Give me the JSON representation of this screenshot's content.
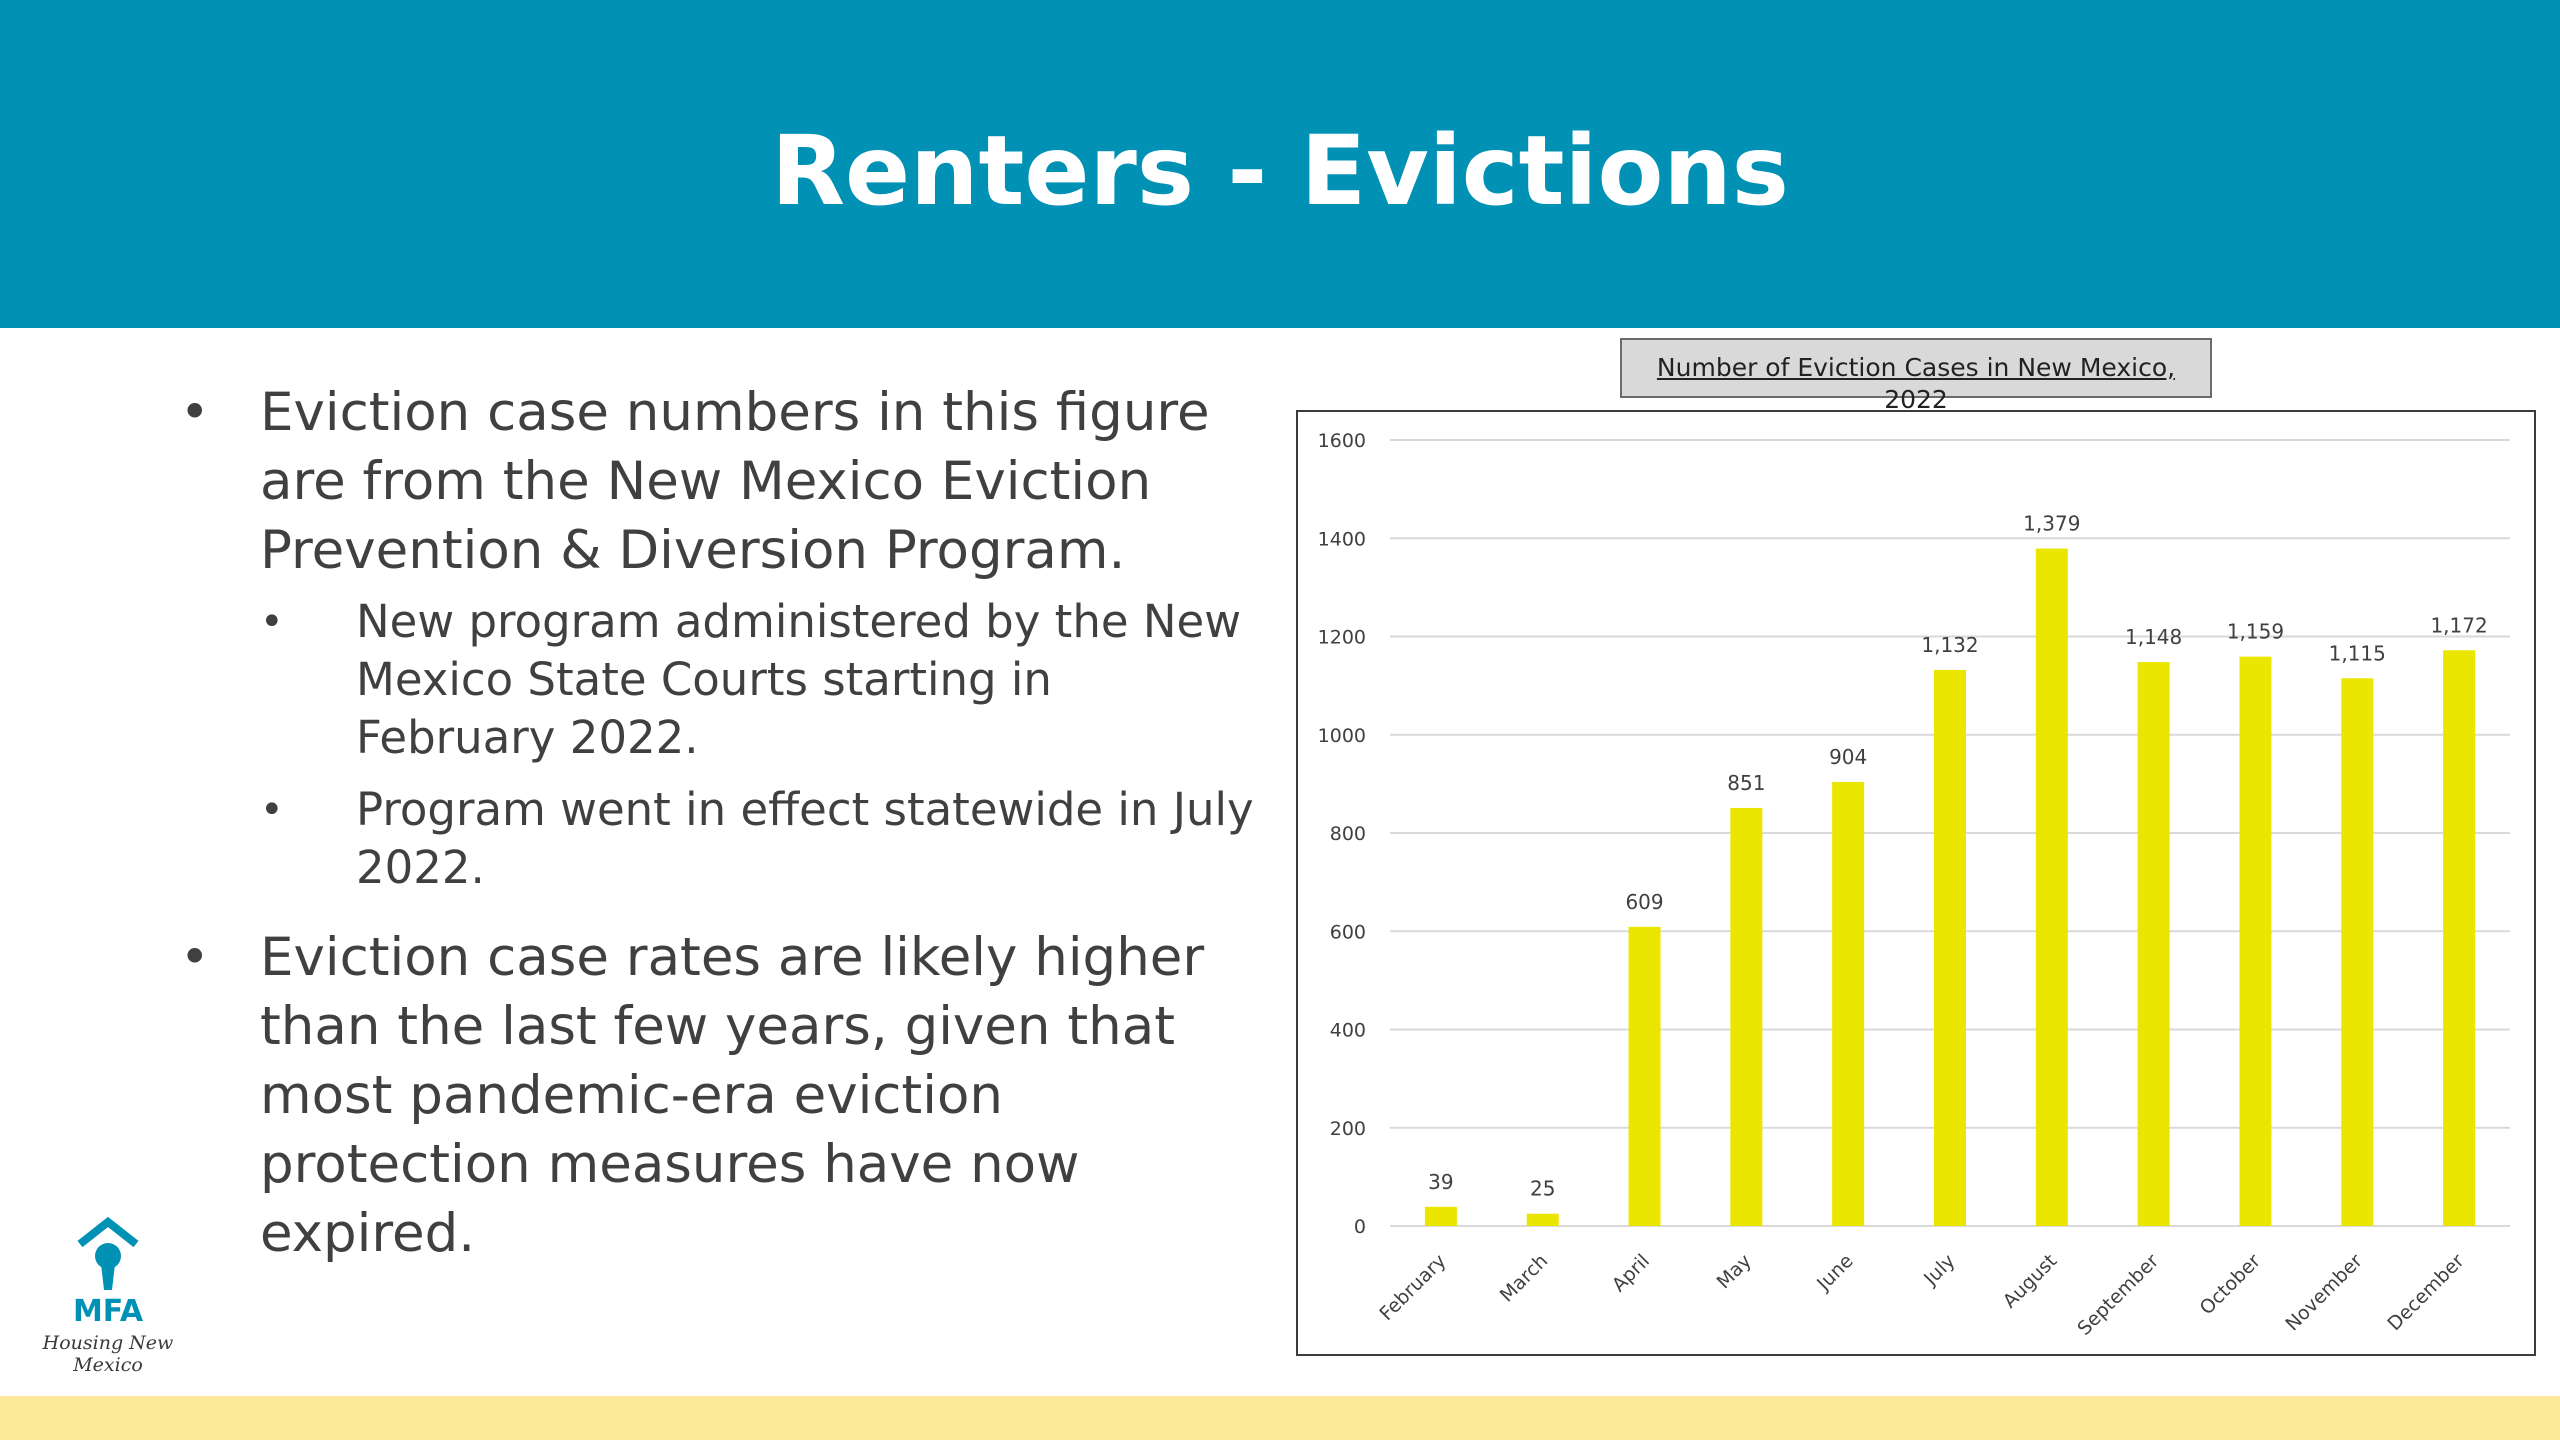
{
  "slide": {
    "title": "Renters - Evictions",
    "colors": {
      "banner": "#0091b5",
      "footer": "#fce99a",
      "bar": "#ebe600",
      "text": "#404040"
    }
  },
  "bullets": {
    "b1": "Eviction case numbers in this figure are from the New Mexico Eviction Prevention & Diversion Program.",
    "b1_sub1": "New program administered by the New Mexico State Courts starting in February 2022.",
    "b1_sub2": "Program went in effect statewide in July 2022.",
    "b2": "Eviction case rates are likely higher than the last few years, given that most pandemic-era eviction protection measures have now expired."
  },
  "logo": {
    "icon": "house-keyhole-icon",
    "text": "MFA",
    "tagline": "Housing New Mexico"
  },
  "chart_data": {
    "type": "bar",
    "title": "Number of Eviction Cases in New Mexico, 2022",
    "xlabel": "",
    "ylabel": "",
    "categories": [
      "February",
      "March",
      "April",
      "May",
      "June",
      "July",
      "August",
      "September",
      "October",
      "November",
      "December"
    ],
    "values": [
      39,
      25,
      609,
      851,
      904,
      1132,
      1379,
      1148,
      1159,
      1115,
      1172
    ],
    "data_labels": [
      "39",
      "25",
      "609",
      "851",
      "904",
      "1,132",
      "1,379",
      "1,148",
      "1,159",
      "1,115",
      "1,172"
    ],
    "ylim": [
      0,
      1600
    ],
    "yticks": [
      0,
      200,
      400,
      600,
      800,
      1000,
      1200,
      1400,
      1600
    ],
    "grid": true,
    "legend": "none",
    "bar_color": "#ebe600"
  }
}
